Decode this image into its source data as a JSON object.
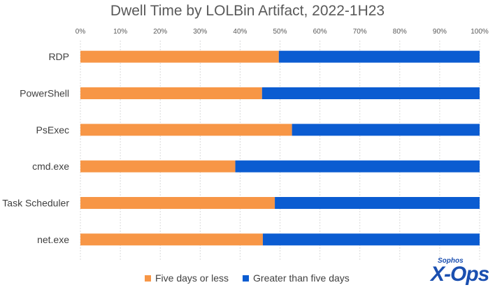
{
  "chart_data": {
    "type": "bar",
    "orientation": "horizontal",
    "stacked": "100%",
    "title": "Dwell Time by LOLBin Artifact, 2022-1H23",
    "categories": [
      "RDP",
      "PowerShell",
      "PsExec",
      "cmd.exe",
      "Task Scheduler",
      "net.exe"
    ],
    "series": [
      {
        "name": "Five days or less",
        "values": [
          49.7,
          45.5,
          53.0,
          38.8,
          48.7,
          45.7
        ],
        "color": "#F79646"
      },
      {
        "name": "Greater than five days",
        "values": [
          50.3,
          54.5,
          47.0,
          61.2,
          51.3,
          54.3
        ],
        "color": "#0B5CD1"
      }
    ],
    "xlim": [
      0,
      100
    ],
    "x_ticks": [
      "0%",
      "10%",
      "20%",
      "30%",
      "40%",
      "50%",
      "60%",
      "70%",
      "80%",
      "90%",
      "100%"
    ],
    "grid": true,
    "legend_position": "bottom"
  },
  "logo": {
    "small": "Sophos",
    "main": "X-Ops"
  }
}
